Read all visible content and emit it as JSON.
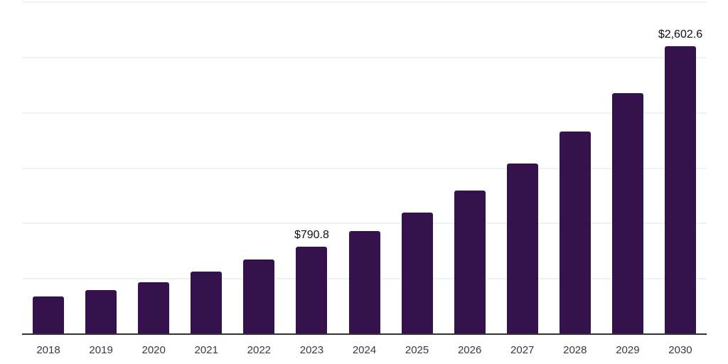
{
  "chart_data": {
    "type": "bar",
    "title": "",
    "xlabel": "",
    "ylabel": "",
    "categories": [
      "2018",
      "2019",
      "2020",
      "2021",
      "2022",
      "2023",
      "2024",
      "2025",
      "2026",
      "2027",
      "2028",
      "2029",
      "2030"
    ],
    "values": [
      340.1,
      400.4,
      471.2,
      566.0,
      673.0,
      790.8,
      932.6,
      1098.5,
      1294.7,
      1539.0,
      1830.5,
      2178.1,
      2602.6
    ],
    "point_labels": [
      "",
      "",
      "",
      "",
      "",
      "$790.8",
      "",
      "",
      "",
      "",
      "",
      "",
      "$2,602.6"
    ],
    "ylim": [
      0,
      3000
    ],
    "gridline_values": [
      500,
      1000,
      1500,
      2000,
      2500,
      3000
    ],
    "grid": "horizontal-only",
    "legend": "none",
    "y_axis_tick_labels": "none",
    "colors": {
      "bar": "#36124d",
      "axis_line": "#333333",
      "gridline": "#f1f1f3",
      "tick_label": "#3a3a3a",
      "value_label": "#111111",
      "background": "#ffffff"
    }
  }
}
